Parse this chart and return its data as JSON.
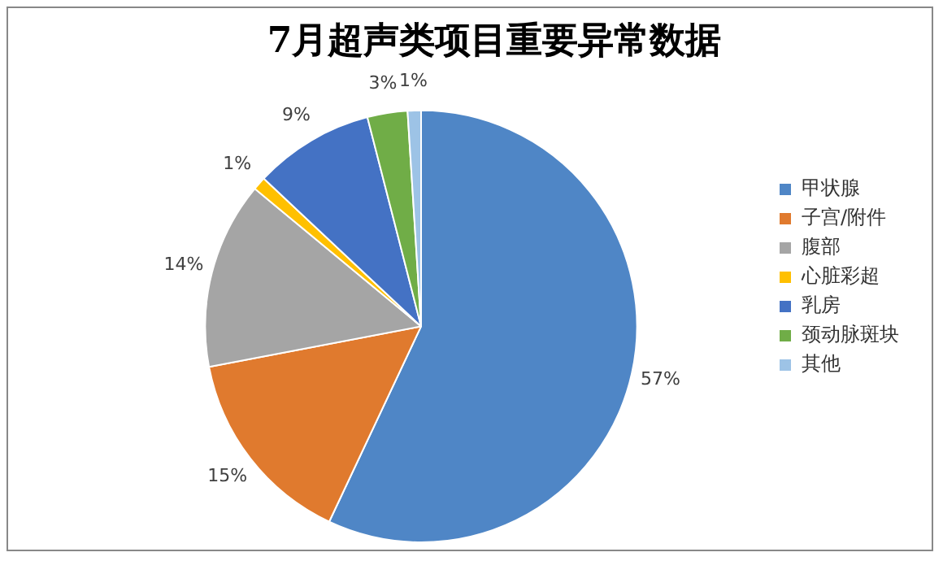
{
  "chart_data": {
    "type": "pie",
    "title": "7月超声类项目重要异常数据",
    "categories": [
      "甲状腺",
      "子宫/附件",
      "腹部",
      "心脏彩超",
      "乳房",
      "颈动脉斑块",
      "其他"
    ],
    "values": [
      57,
      15,
      14,
      1,
      9,
      3,
      1
    ],
    "value_labels": [
      "57%",
      "15%",
      "14%",
      "1%",
      "9%",
      "3%",
      "1%"
    ],
    "colors": [
      "#4f86c6",
      "#e07a2e",
      "#a5a5a5",
      "#ffc000",
      "#4472c4",
      "#70ad47",
      "#9dc3e6"
    ],
    "legend": "right"
  }
}
